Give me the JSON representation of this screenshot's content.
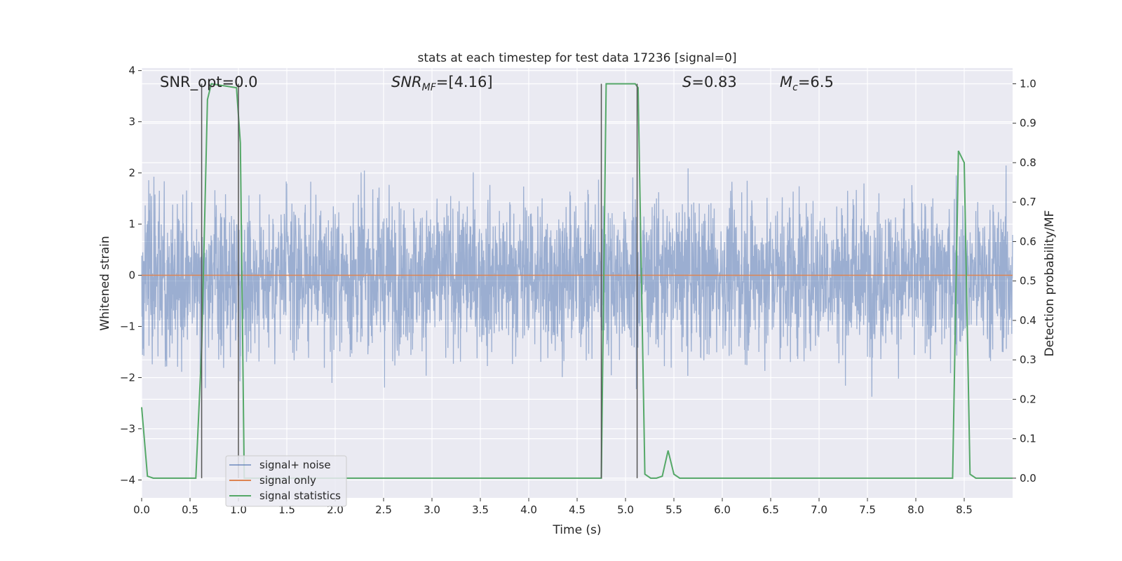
{
  "chart_data": {
    "type": "line",
    "title": "stats at each timestep for test data 17236 [signal=0]",
    "xlabel": "Time (s)",
    "ylabel": "Whitened strain",
    "y2label": "Detection probability/MF",
    "xlim": [
      0.0,
      9.0
    ],
    "ylim": [
      -4.35,
      4.05
    ],
    "y2lim": [
      -0.05,
      1.04
    ],
    "xticks": [
      "0.0",
      "0.5",
      "1.0",
      "1.5",
      "2.0",
      "2.5",
      "3.0",
      "3.5",
      "4.0",
      "4.5",
      "5.0",
      "5.5",
      "6.0",
      "6.5",
      "7.0",
      "7.5",
      "8.0",
      "8.5"
    ],
    "yticks": [
      "4",
      "3",
      "2",
      "1",
      "0",
      "−1",
      "−2",
      "−3",
      "−4"
    ],
    "y2ticks": [
      "1.0",
      "0.9",
      "0.8",
      "0.7",
      "0.6",
      "0.5",
      "0.4",
      "0.3",
      "0.2",
      "0.1",
      "0.0"
    ],
    "grid": true,
    "legend_position": "lower-left",
    "annotations": {
      "snr_opt": "SNR_opt=0.0",
      "snr_mf_main": "SNR",
      "snr_mf_sub": "MF",
      "snr_mf_rest": "=[4.16]",
      "s_main": "S",
      "s_rest": "=0.83",
      "mc_main": "M",
      "mc_sub": "c",
      "mc_rest": "=6.5"
    },
    "vertical_markers": [
      0.62,
      1.0,
      4.75,
      5.12
    ],
    "series": [
      {
        "name": "signal+ noise",
        "color": "#4c72b0",
        "axis": "left",
        "description_values": "white noise, approx. range -4.0 to 3.7"
      },
      {
        "name": "signal only",
        "color": "#dd8452",
        "axis": "left",
        "x": [
          0.0,
          9.0
        ],
        "y": [
          0.0,
          0.0
        ]
      },
      {
        "name": "signal statistics",
        "color": "#55a868",
        "axis": "right",
        "x": [
          0.0,
          0.06,
          0.12,
          0.56,
          0.62,
          0.68,
          0.72,
          0.98,
          1.02,
          1.06,
          4.75,
          4.8,
          5.1,
          5.13,
          5.2,
          5.26,
          5.32,
          5.38,
          5.44,
          5.5,
          5.56,
          8.38,
          8.44,
          8.5,
          8.56,
          8.62,
          9.0
        ],
        "y": [
          0.18,
          0.005,
          0.0,
          0.0,
          0.33,
          0.96,
          1.0,
          0.99,
          0.85,
          0.0,
          0.0,
          1.0,
          1.0,
          0.99,
          0.01,
          0.0,
          0.0,
          0.005,
          0.07,
          0.01,
          0.0,
          0.0,
          0.83,
          0.8,
          0.01,
          0.0,
          0.0
        ]
      }
    ]
  }
}
